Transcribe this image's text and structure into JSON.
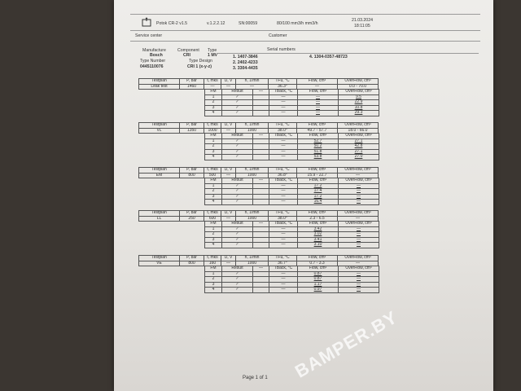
{
  "header": {
    "device": "Potok CR-2 v1.5",
    "version": "v.1.2.2.12",
    "serial": "SN:00059",
    "units": "80/100 mm3/h mm3/h",
    "date": "21.03.2024",
    "time": "18:11:05",
    "logo_icon": "printer-icon"
  },
  "service_center": "Service center",
  "customer": "Customer",
  "info": {
    "manufacture_label": "Manufacture",
    "manufacture": "Bosch",
    "component_label": "Component",
    "component": "CRI",
    "type_label": "Type",
    "type": "1 MV",
    "type_number_label": "Type Number",
    "type_number": "0445110076",
    "type_design_label": "Type Design",
    "type_design": "CRI 1 (x-y-z)",
    "serial_label": "Serial numbers",
    "serials": [
      "1.  1407-3846",
      "2.  2402-4233",
      "3.  3304-4435",
      "4.  1304-0357-48723"
    ]
  },
  "main_headers": [
    "Testplan",
    "P, bar",
    "t, mks",
    "U, V",
    "n, 1/min",
    "TFu, °C",
    "Flow, cm³",
    "OverFlow, cm³"
  ],
  "sub_headers": [
    "FM",
    "Result",
    "—",
    "TBack, °C",
    "Flow, cm³",
    "OverFlow, cm³"
  ],
  "result_mark": "✓",
  "tests": [
    {
      "main": [
        "Leak test",
        "1460",
        "—",
        "—",
        "—",
        "36.3°",
        "—",
        "0.0 - 70.0"
      ],
      "rows": [
        [
          "1",
          "—",
          "—",
          "9.5"
        ],
        [
          "2",
          "—",
          "—",
          "22.9"
        ],
        [
          "3",
          "—",
          "—",
          "10.8"
        ],
        [
          "4",
          "—",
          "—",
          "29.3"
        ]
      ]
    },
    {
      "main": [
        "VL",
        "1350",
        "1000",
        "—",
        "1000",
        "38.0°",
        "49.7 - 57.7",
        "18.0 - 66.0"
      ],
      "rows": [
        [
          "1",
          "—",
          "52.7",
          "27.1"
        ],
        [
          "2",
          "—",
          "50.2",
          "42.8"
        ],
        [
          "3",
          "—",
          "51.8",
          "27.1"
        ],
        [
          "4",
          "—",
          "53.8",
          "27.0"
        ]
      ]
    },
    {
      "main": [
        "EM",
        "800",
        "500",
        "—",
        "1000",
        "36.8°",
        "15.9 - 22.7",
        "—"
      ],
      "rows": [
        [
          "1",
          "—",
          "17.2",
          "—"
        ],
        [
          "2",
          "—",
          "17.4",
          "—"
        ],
        [
          "3",
          "—",
          "17.2",
          "—"
        ],
        [
          "4",
          "—",
          "16.4",
          "—"
        ]
      ]
    },
    {
      "main": [
        "LL",
        "250",
        "600",
        "—",
        "1000",
        "38.0°",
        "2.3 - 6.5",
        "—"
      ],
      "rows": [
        [
          "1",
          "—",
          "3.42",
          "—"
        ],
        [
          "2",
          "—",
          "3.02",
          "—"
        ],
        [
          "3",
          "—",
          "3.41",
          "—"
        ],
        [
          "4",
          "—",
          "3.10",
          "—"
        ]
      ]
    },
    {
      "main": [
        "VE",
        "800",
        "160",
        "—",
        "1000",
        "36.7°",
        "0.7 - 3.3",
        "—"
      ],
      "rows": [
        [
          "1",
          "—",
          "0.87",
          "—"
        ],
        [
          "2",
          "—",
          "0.87",
          "—"
        ],
        [
          "3",
          "—",
          "1.17",
          "—"
        ],
        [
          "4",
          "—",
          "0.97",
          "—"
        ]
      ]
    }
  ],
  "footer": "Page 1 of 1",
  "watermark": "BAMPER.BY"
}
